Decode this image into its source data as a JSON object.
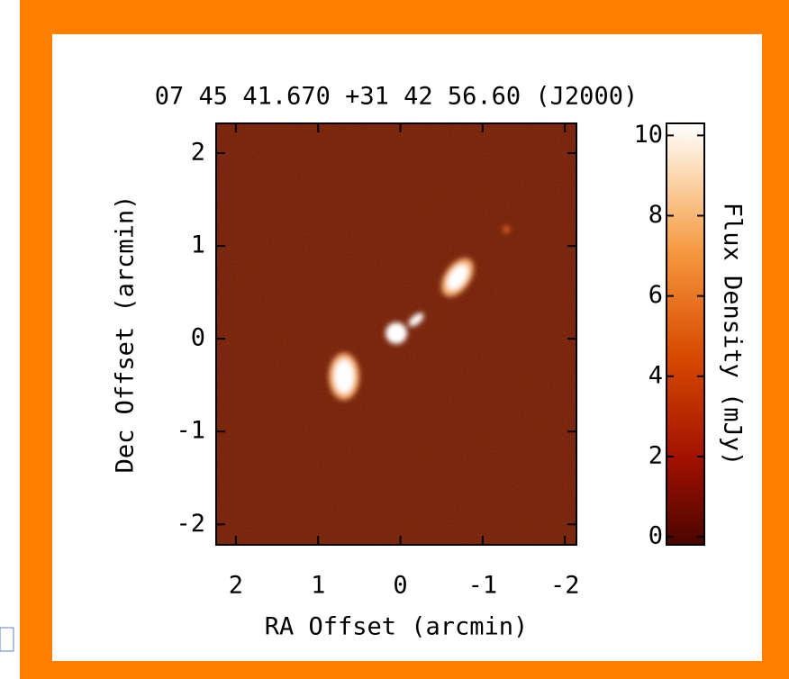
{
  "chart_data": {
    "type": "image",
    "title": "07 45 41.670 +31 42 56.60 (J2000)",
    "xlabel": "RA Offset (arcmin)",
    "ylabel": "Dec Offset (arcmin)",
    "xlim": [
      2.24,
      -2.14
    ],
    "xticks": [
      2,
      1,
      0,
      -1,
      -2
    ],
    "ylim": [
      -2.22,
      2.32
    ],
    "yticks": [
      -2,
      -1,
      0,
      1,
      2
    ],
    "colorbar": {
      "label": "Flux Density (mJy)",
      "lim": [
        -0.2,
        10.3
      ],
      "ticks": [
        0,
        2,
        4,
        6,
        8,
        10
      ]
    }
  }
}
